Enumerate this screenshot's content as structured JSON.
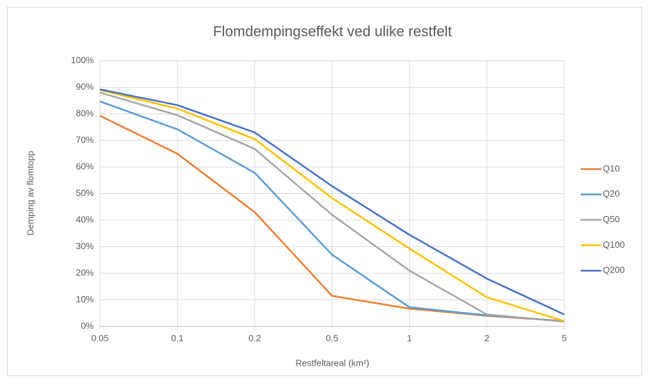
{
  "chart_data": {
    "type": "line",
    "title": "Flomdempingseffekt ved ulike restfelt",
    "xlabel": "Restfeltareal (km²)",
    "ylabel": "Demping av flomtopp",
    "categories": [
      "0.05",
      "0.1",
      "0.2",
      "0.5",
      "1",
      "2",
      "5"
    ],
    "series": [
      {
        "name": "Q10",
        "color": "#ed7d31",
        "values": [
          79.3,
          65,
          43,
          11.5,
          6.7,
          4,
          2
        ]
      },
      {
        "name": "Q20",
        "color": "#5b9bd5",
        "values": [
          84.7,
          74.2,
          57.8,
          27,
          7.2,
          4.2,
          2
        ]
      },
      {
        "name": "Q50",
        "color": "#a5a5a5",
        "values": [
          88,
          79.5,
          66.8,
          42,
          21,
          4.5,
          1.8
        ]
      },
      {
        "name": "Q100",
        "color": "#ffc000",
        "values": [
          89,
          82,
          70.5,
          48.3,
          29.3,
          11,
          2
        ]
      },
      {
        "name": "Q200",
        "color": "#4472c4",
        "values": [
          89.2,
          83.3,
          73,
          52.8,
          34.5,
          18,
          4.5
        ]
      }
    ],
    "ylim": [
      0,
      100
    ],
    "yticks": [
      {
        "value": 0,
        "label": "0%"
      },
      {
        "value": 10,
        "label": "10%"
      },
      {
        "value": 20,
        "label": "20%"
      },
      {
        "value": 30,
        "label": "30%"
      },
      {
        "value": 40,
        "label": "40%"
      },
      {
        "value": 50,
        "label": "50%"
      },
      {
        "value": 60,
        "label": "60%"
      },
      {
        "value": 70,
        "label": "70%"
      },
      {
        "value": 80,
        "label": "80%"
      },
      {
        "value": 90,
        "label": "90%"
      },
      {
        "value": 100,
        "label": "100%"
      }
    ],
    "grid": true,
    "legend": "right"
  }
}
